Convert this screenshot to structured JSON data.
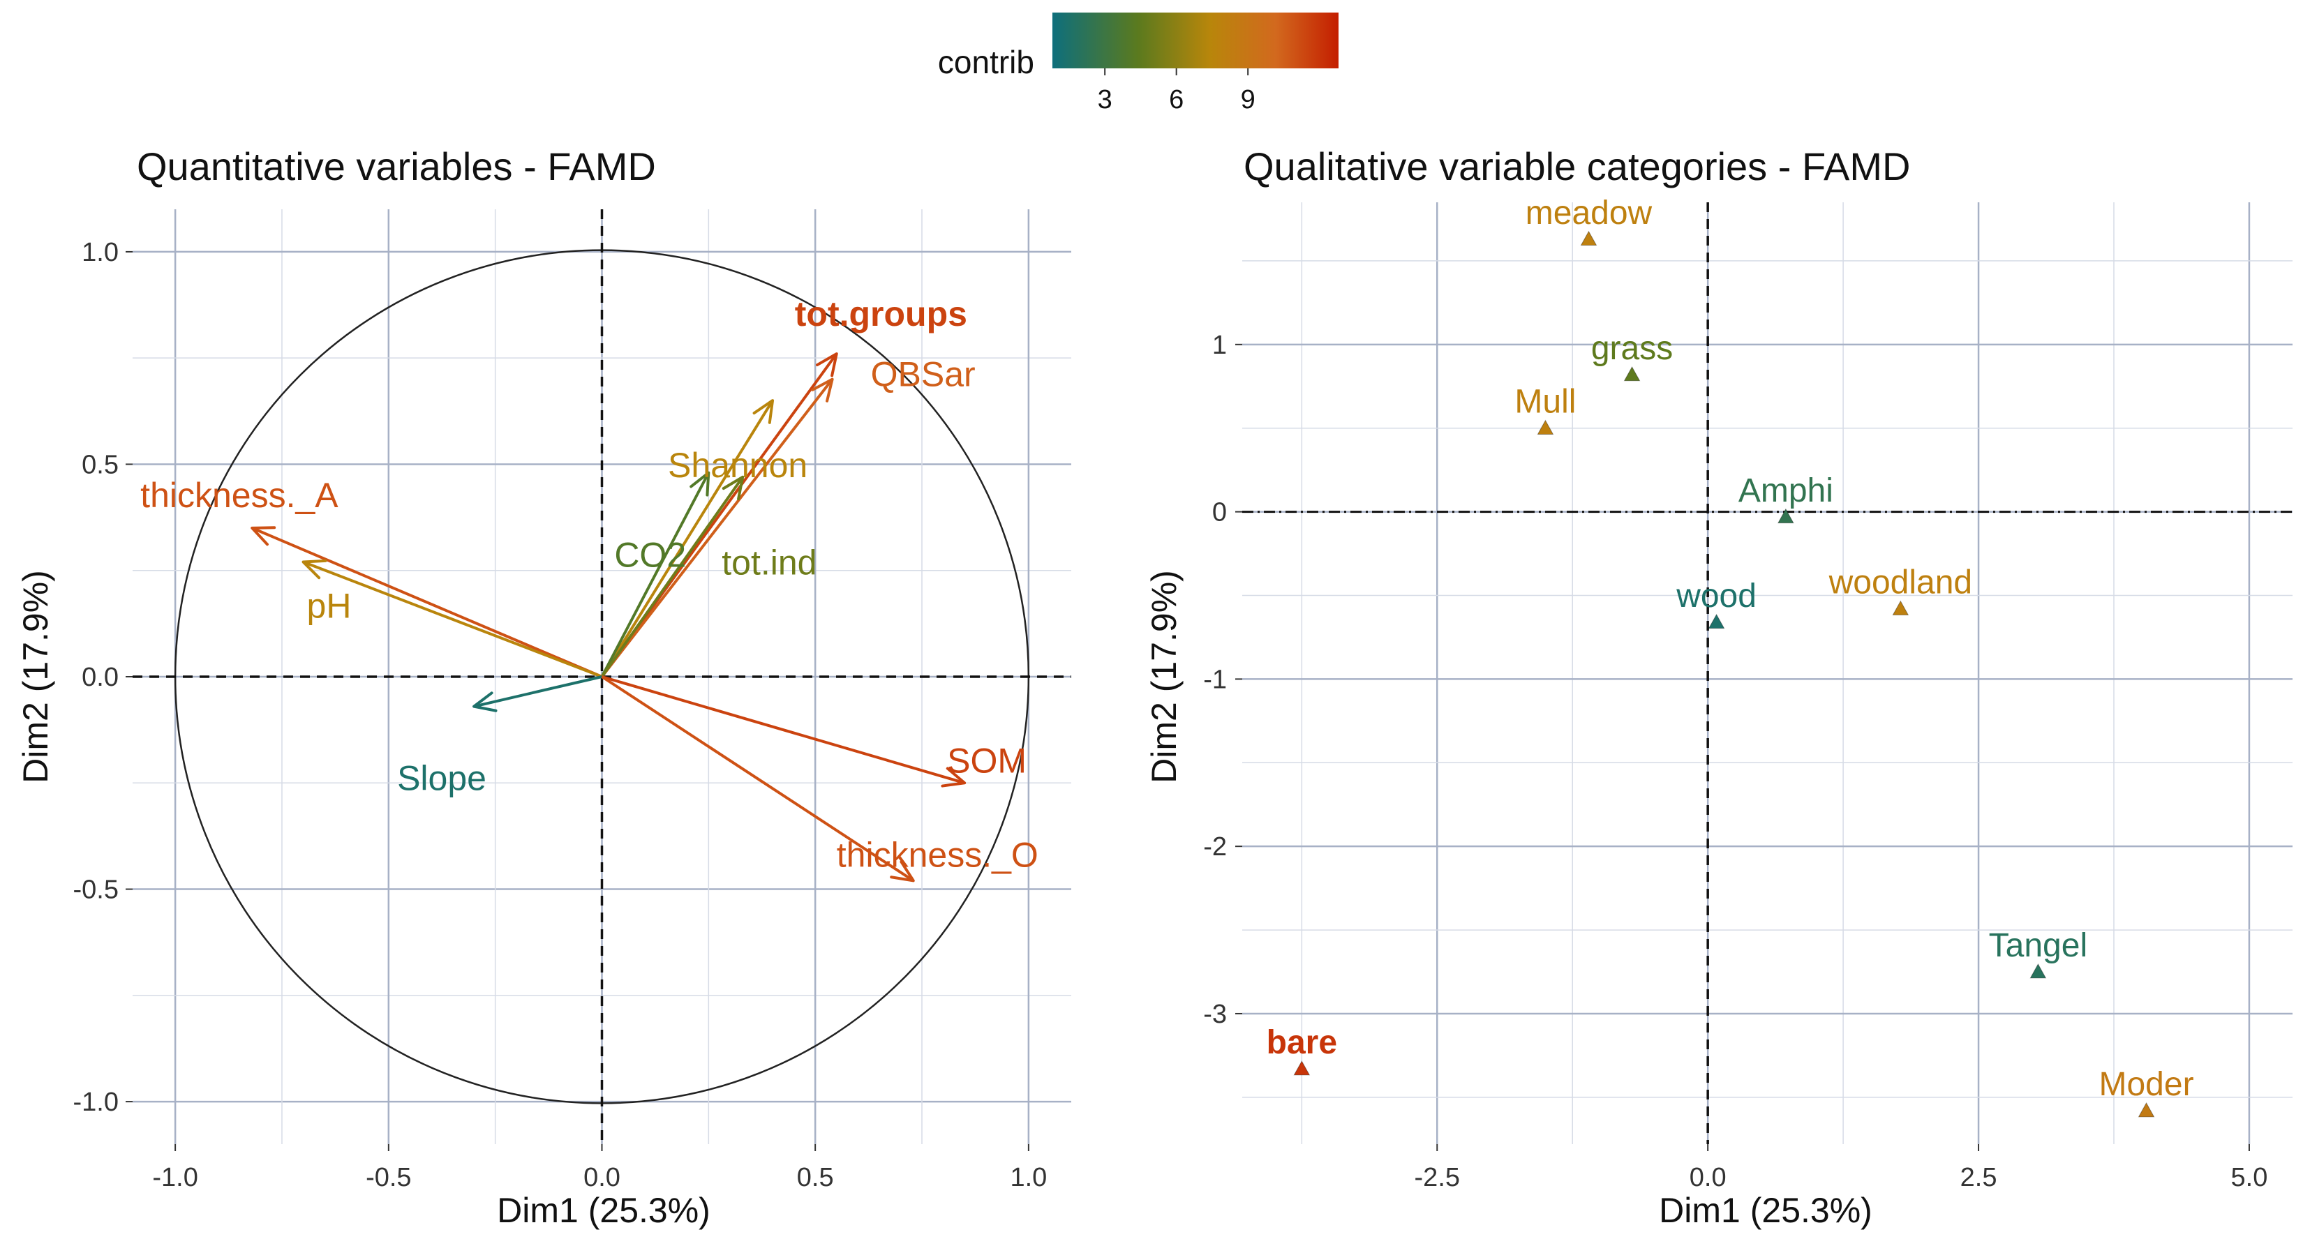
{
  "legend": {
    "title": "contrib",
    "ticks": [
      3,
      6,
      9
    ],
    "range": [
      0.8,
      12.8
    ],
    "colors": [
      "#0e6f7c",
      "#5b7a1e",
      "#b8860b",
      "#d2691e",
      "#c41e00"
    ]
  },
  "chart_data": [
    {
      "type": "scatter",
      "subtype": "correlation-circle",
      "title": "Quantitative variables - FAMD",
      "xlabel": "Dim1 (25.3%)",
      "ylabel": "Dim2 (17.9%)",
      "xlim": [
        -1.1,
        1.1
      ],
      "ylim": [
        -1.1,
        1.1
      ],
      "xticks": [
        -1.0,
        -0.5,
        0.0,
        0.5,
        1.0
      ],
      "xtick_labels": [
        "-1.0",
        "-0.5",
        "0.0",
        "0.5",
        "1.0"
      ],
      "yticks": [
        -1.0,
        -0.5,
        0.0,
        0.5,
        1.0
      ],
      "ytick_labels": [
        "-1.0",
        "-0.5",
        "0.0",
        "0.5",
        "1.0"
      ],
      "circle_radius": 1.0,
      "arrows": [
        {
          "name": "tot.groups",
          "x": 0.55,
          "y": 0.76,
          "contrib": 11.5,
          "bold": true
        },
        {
          "name": "QBSar",
          "x": 0.54,
          "y": 0.7,
          "contrib": 10.5,
          "bold": false
        },
        {
          "name": "Shannon",
          "x": 0.4,
          "y": 0.65,
          "contrib": 7.5,
          "bold": false
        },
        {
          "name": "CO2",
          "x": 0.25,
          "y": 0.48,
          "contrib": 4.0,
          "bold": false
        },
        {
          "name": "tot.ind",
          "x": 0.33,
          "y": 0.47,
          "contrib": 5.0,
          "bold": false
        },
        {
          "name": "thickness._A",
          "x": -0.82,
          "y": 0.35,
          "contrib": 11.0,
          "bold": false
        },
        {
          "name": "pH",
          "x": -0.7,
          "y": 0.27,
          "contrib": 7.5,
          "bold": false
        },
        {
          "name": "Slope",
          "x": -0.3,
          "y": -0.07,
          "contrib": 1.5,
          "bold": false
        },
        {
          "name": "SOM",
          "x": 0.85,
          "y": -0.25,
          "contrib": 11.5,
          "bold": false
        },
        {
          "name": "thickness._O",
          "x": 0.73,
          "y": -0.48,
          "contrib": 11.0,
          "bold": false
        }
      ]
    },
    {
      "type": "scatter",
      "title": "Qualitative variable categories - FAMD",
      "xlabel": "Dim1 (25.3%)",
      "ylabel": "Dim2 (17.9%)",
      "xlim": [
        -4.3,
        5.4
      ],
      "ylim": [
        -3.78,
        1.85
      ],
      "xticks": [
        -2.5,
        0.0,
        2.5,
        5.0
      ],
      "xtick_labels": [
        "-2.5",
        "0.0",
        "2.5",
        "5.0"
      ],
      "yticks": [
        -3,
        -2,
        -1,
        0,
        1
      ],
      "ytick_labels": [
        "-3",
        "-2",
        "-1",
        "0",
        "1"
      ],
      "points": [
        {
          "name": "meadow",
          "x": -1.1,
          "y": 1.63,
          "contrib": 8.0
        },
        {
          "name": "grass",
          "x": -0.7,
          "y": 0.82,
          "contrib": 4.5
        },
        {
          "name": "Mull",
          "x": -1.5,
          "y": 0.5,
          "contrib": 8.0
        },
        {
          "name": "Amphi",
          "x": 0.72,
          "y": -0.03,
          "contrib": 2.5
        },
        {
          "name": "wood",
          "x": 0.08,
          "y": -0.66,
          "contrib": 1.5
        },
        {
          "name": "woodland",
          "x": 1.78,
          "y": -0.58,
          "contrib": 8.0
        },
        {
          "name": "Tangel",
          "x": 3.05,
          "y": -2.75,
          "contrib": 2.0
        },
        {
          "name": "bare",
          "x": -3.75,
          "y": -3.33,
          "contrib": 12.0
        },
        {
          "name": "Moder",
          "x": 4.05,
          "y": -3.58,
          "contrib": 8.5
        }
      ]
    }
  ]
}
